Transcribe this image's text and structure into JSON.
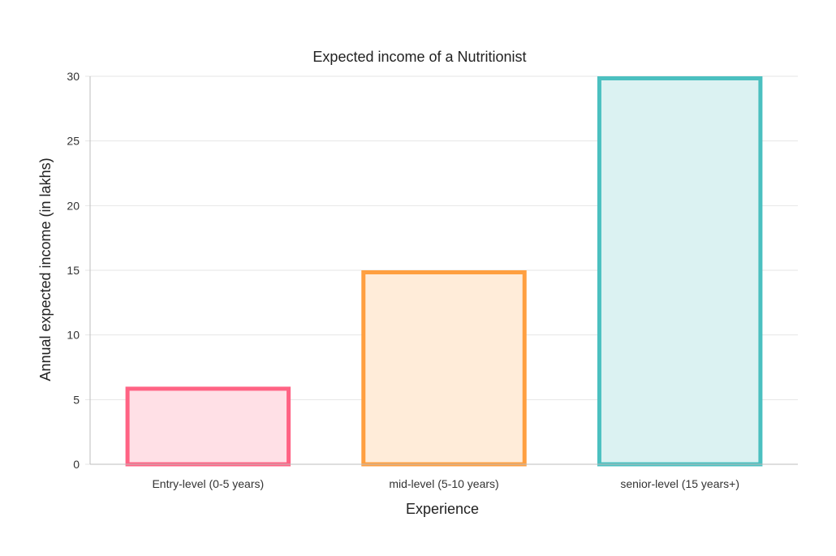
{
  "chart_data": {
    "type": "bar",
    "title": "Expected income of a Nutritionist",
    "xlabel": "Experience",
    "ylabel": "Annual expected income (in lakhs)",
    "categories": [
      "Entry-level (0-5 years)",
      "mid-level (5-10 years)",
      "senior-level (15 years+)"
    ],
    "values": [
      6,
      15,
      30
    ],
    "ylim": [
      0,
      30
    ],
    "yticks": [
      0,
      5,
      10,
      15,
      20,
      25,
      30
    ],
    "grid": true,
    "legend": "none",
    "bar_colors": [
      {
        "stroke": "#ff6384",
        "fill": "#ffe0e6"
      },
      {
        "stroke": "#ff9f40",
        "fill": "#ffecd9"
      },
      {
        "stroke": "#4bc0c0",
        "fill": "#dbf2f2"
      }
    ]
  }
}
